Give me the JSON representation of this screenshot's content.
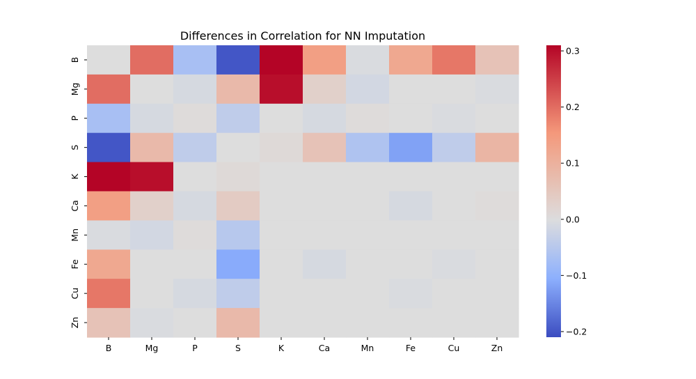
{
  "chart_data": {
    "type": "heatmap",
    "title": "Differences in Correlation for NN Imputation",
    "xlabel": "",
    "ylabel": "",
    "x_categories": [
      "B",
      "Mg",
      "P",
      "S",
      "K",
      "Ca",
      "Mn",
      "Fe",
      "Cu",
      "Zn"
    ],
    "y_categories": [
      "B",
      "Mg",
      "P",
      "S",
      "K",
      "Ca",
      "Mn",
      "Fe",
      "Cu",
      "Zn"
    ],
    "values": [
      [
        0.0,
        0.2,
        -0.07,
        -0.2,
        0.31,
        0.14,
        -0.005,
        0.12,
        0.19,
        0.06
      ],
      [
        0.2,
        0.0,
        -0.01,
        0.08,
        0.3,
        0.03,
        -0.015,
        0.0,
        0.0,
        -0.005
      ],
      [
        -0.07,
        -0.01,
        0.005,
        -0.04,
        0.0,
        -0.01,
        0.005,
        0.0,
        -0.005,
        0.0
      ],
      [
        -0.2,
        0.08,
        -0.04,
        0.0,
        0.01,
        0.06,
        -0.06,
        -0.12,
        -0.04,
        0.09
      ],
      [
        0.31,
        0.3,
        0.0,
        0.01,
        0.0,
        0.0,
        0.0,
        0.0,
        0.0,
        0.0
      ],
      [
        0.14,
        0.03,
        -0.01,
        0.04,
        0.0,
        0.0,
        0.0,
        -0.01,
        0.0,
        0.005
      ],
      [
        -0.005,
        -0.015,
        0.005,
        -0.05,
        0.0,
        0.0,
        0.0,
        0.0,
        0.0,
        0.0
      ],
      [
        0.12,
        0.0,
        0.0,
        -0.11,
        0.0,
        -0.01,
        0.0,
        0.0,
        -0.005,
        0.0
      ],
      [
        0.19,
        0.0,
        -0.01,
        -0.04,
        0.0,
        0.0,
        0.0,
        -0.005,
        0.0,
        0.0
      ],
      [
        0.06,
        -0.005,
        0.0,
        0.08,
        0.0,
        0.0,
        0.0,
        0.0,
        0.0,
        0.0
      ]
    ],
    "colormap": "coolwarm",
    "color_range": [
      -0.21,
      0.31
    ],
    "colorbar_ticks": [
      -0.2,
      -0.1,
      0.0,
      0.1,
      0.2,
      0.3
    ],
    "colorbar_tick_labels": [
      "−0.2",
      "−0.1",
      "0.0",
      "0.1",
      "0.2",
      "0.3"
    ],
    "grid": false,
    "legend": "colorbar-right"
  }
}
